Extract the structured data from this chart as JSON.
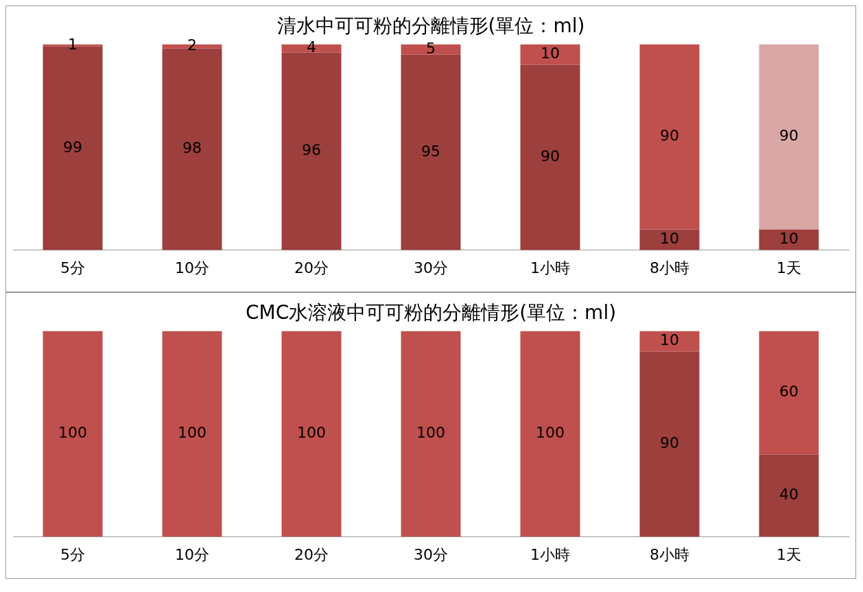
{
  "chart_data": [
    {
      "type": "bar",
      "title": "清水中可可粉的分離情形(單位：ml)",
      "categories": [
        "5分",
        "10分",
        "20分",
        "30分",
        "1小時",
        "8小時",
        "1天"
      ],
      "stacked": true,
      "data_labels": true,
      "tick_labels": "x",
      "grid": false,
      "legend": false,
      "ylim": [
        0,
        100
      ],
      "series": [
        {
          "color": "#9d3f3d",
          "values": [
            99,
            98,
            96,
            95,
            90,
            10,
            10
          ]
        },
        {
          "colors": [
            "#c0504d",
            "#c0504d",
            "#c0504d",
            "#c0504d",
            "#c0504d",
            "#c0504d",
            "#d9a7a6"
          ],
          "values": [
            1,
            2,
            4,
            5,
            10,
            90,
            90
          ]
        }
      ]
    },
    {
      "type": "bar",
      "title": "CMC水溶液中可可粉的分離情形(單位：ml)",
      "categories": [
        "5分",
        "10分",
        "20分",
        "30分",
        "1小時",
        "8小時",
        "1天"
      ],
      "stacked": true,
      "data_labels": true,
      "tick_labels": "x",
      "grid": false,
      "legend": false,
      "ylim": [
        0,
        100
      ],
      "series": [
        {
          "color": "#9d3f3d",
          "values": [
            null,
            null,
            null,
            null,
            null,
            90,
            40
          ]
        },
        {
          "color": "#c0504d",
          "values": [
            100,
            100,
            100,
            100,
            100,
            10,
            60
          ]
        }
      ]
    }
  ]
}
